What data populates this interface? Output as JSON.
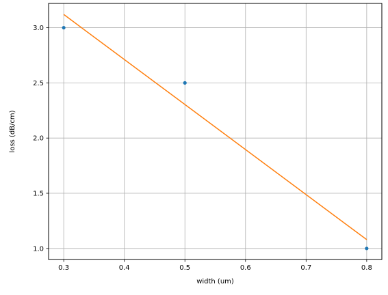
{
  "chart_data": {
    "type": "scatter",
    "title": "",
    "xlabel": "width (um)",
    "ylabel": "loss (dB/cm)",
    "xlim": [
      0.275,
      0.825
    ],
    "ylim": [
      0.9,
      3.22
    ],
    "x_ticks": [
      0.3,
      0.4,
      0.5,
      0.6,
      0.7,
      0.8
    ],
    "x_tick_labels": [
      "0.3",
      "0.4",
      "0.5",
      "0.6",
      "0.7",
      "0.8"
    ],
    "y_ticks": [
      1.0,
      1.5,
      2.0,
      2.5,
      3.0
    ],
    "y_tick_labels": [
      "1.0",
      "1.5",
      "2.0",
      "2.5",
      "3.0"
    ],
    "grid": true,
    "series": [
      {
        "kind": "scatter",
        "color": "#1f77b4",
        "x": [
          0.3,
          0.5,
          0.8
        ],
        "y": [
          3.0,
          2.5,
          1.0
        ]
      },
      {
        "kind": "line",
        "color": "#ff7f0e",
        "x": [
          0.3,
          0.8
        ],
        "y": [
          3.12,
          1.08
        ]
      }
    ]
  }
}
